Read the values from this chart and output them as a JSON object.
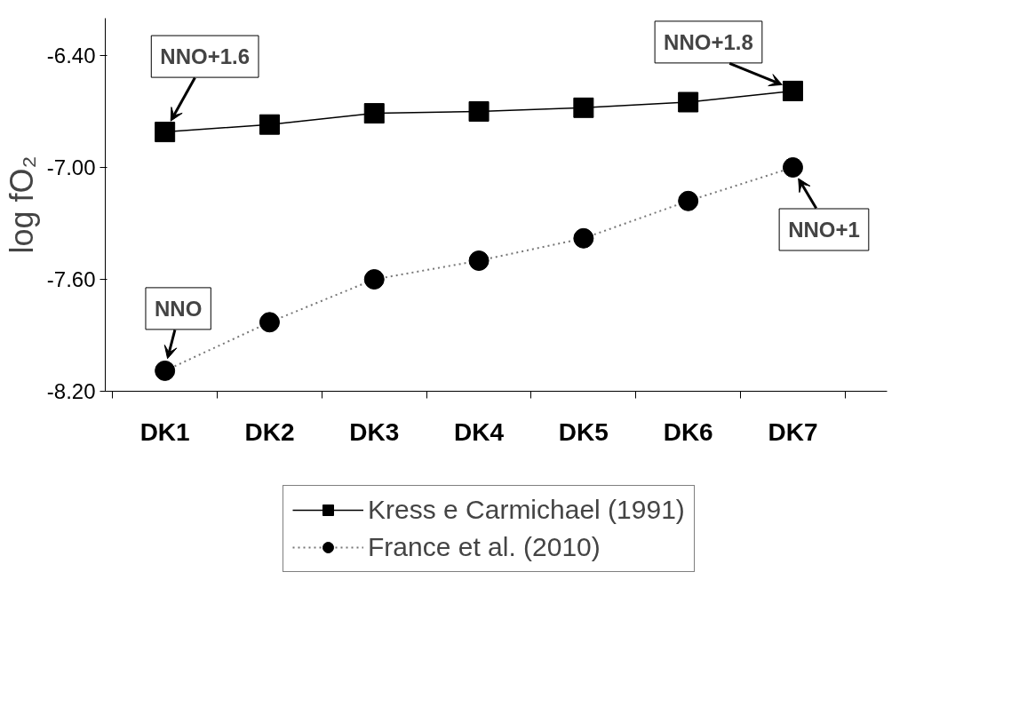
{
  "chart_data": {
    "type": "line",
    "ylabel": "log fO₂",
    "categories": [
      "DK1",
      "DK2",
      "DK3",
      "DK4",
      "DK5",
      "DK6",
      "DK7"
    ],
    "series": [
      {
        "name": "Kress e Carmichael (1991)",
        "color": "#000000",
        "marker": "square",
        "line_style": "solid",
        "values": [
          -6.81,
          -6.77,
          -6.71,
          -6.7,
          -6.68,
          -6.65,
          -6.59
        ]
      },
      {
        "name": "France et al. (2010)",
        "color": "#000000",
        "marker": "circle",
        "line_style": "dotted",
        "values": [
          -8.09,
          -7.83,
          -7.6,
          -7.5,
          -7.38,
          -7.18,
          -7.0
        ]
      }
    ],
    "ylim": [
      -8.2,
      -6.2
    ],
    "yticks": [
      {
        "value": -8.2,
        "label": "-8.20"
      },
      {
        "value": -7.6,
        "label": "-7.60"
      },
      {
        "value": -7.0,
        "label": "-7.00"
      },
      {
        "value": -6.4,
        "label": "-6.40"
      }
    ],
    "grid": false,
    "legend": "bottom",
    "annotations": [
      {
        "text": "NNO+1.6",
        "x": "DK1",
        "y": -6.81
      },
      {
        "text": "NNO+1.8",
        "x": "DK7",
        "y": -6.59
      },
      {
        "text": "NNO",
        "x": "DK1",
        "y": -8.09
      },
      {
        "text": "NNO+1",
        "x": "DK7",
        "y": -7.0
      }
    ]
  }
}
